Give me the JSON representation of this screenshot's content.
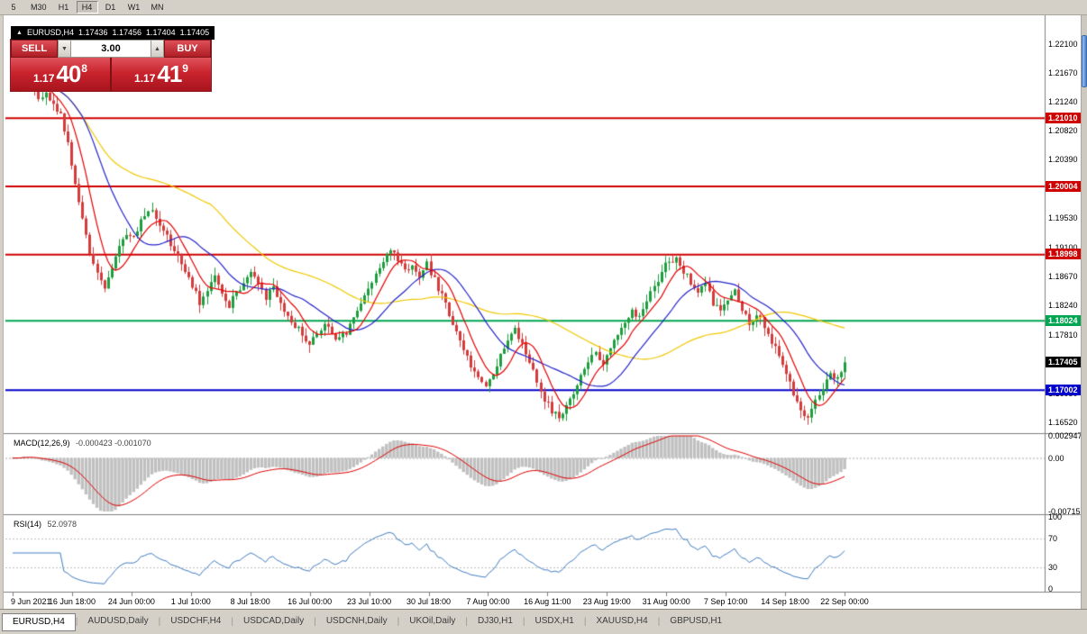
{
  "toolbar": {
    "timeframes": [
      "5",
      "M30",
      "H1",
      "H4",
      "D1",
      "W1",
      "MN"
    ],
    "active_index": 3
  },
  "chart_header": {
    "symbol": "EURUSD,H4",
    "open": "1.17436",
    "high": "1.17456",
    "low": "1.17404",
    "close": "1.17405"
  },
  "trade_panel": {
    "sell_label": "SELL",
    "buy_label": "BUY",
    "volume": "3.00",
    "bid": {
      "big_figure": "1.17",
      "pips": "40",
      "pipette": "8"
    },
    "ask": {
      "big_figure": "1.17",
      "pips": "41",
      "pipette": "9"
    }
  },
  "price_axis": {
    "ticks": [
      "1.22100",
      "1.21670",
      "1.21240",
      "1.20820",
      "1.20390",
      "1.19530",
      "1.19100",
      "1.18670",
      "1.18240",
      "1.17810",
      "1.16950",
      "1.16520"
    ]
  },
  "chart_data": {
    "type": "candlestick",
    "symbol": "EURUSD",
    "timeframe": "H4",
    "y_range": [
      1.164,
      1.2248
    ],
    "up_color": "#1e9e3e",
    "down_color": "#d43b3b",
    "x_labels": [
      "9 Jun 2021",
      "16 Jun 18:00",
      "24 Jun 00:00",
      "1 Jul 10:00",
      "8 Jul 18:00",
      "16 Jul 00:00",
      "23 Jul 10:00",
      "30 Jul 18:00",
      "7 Aug 00:00",
      "16 Aug 11:00",
      "23 Aug 19:00",
      "31 Aug 00:00",
      "7 Sep 10:00",
      "14 Sep 18:00",
      "22 Sep 00:00"
    ],
    "candles_per_point": 2,
    "close_path": [
      1.2152,
      1.217,
      1.2148,
      1.2132,
      1.214,
      1.2122,
      1.2106,
      1.2065,
      1.2005,
      1.1948,
      1.1902,
      1.1868,
      1.185,
      1.1882,
      1.1912,
      1.1932,
      1.1922,
      1.1946,
      1.1968,
      1.1956,
      1.1938,
      1.1916,
      1.1893,
      1.1872,
      1.1852,
      1.183,
      1.185,
      1.1868,
      1.1846,
      1.1826,
      1.184,
      1.1862,
      1.1878,
      1.1858,
      1.1838,
      1.185,
      1.1828,
      1.181,
      1.1796,
      1.178,
      1.177,
      1.1784,
      1.1796,
      1.1782,
      1.1772,
      1.1786,
      1.1804,
      1.1824,
      1.1846,
      1.1868,
      1.1888,
      1.1902,
      1.1892,
      1.1876,
      1.1886,
      1.187,
      1.1884,
      1.1862,
      1.1838,
      1.1812,
      1.1784,
      1.176,
      1.1738,
      1.172,
      1.1708,
      1.1722,
      1.1748,
      1.1774,
      1.1788,
      1.1768,
      1.174,
      1.1712,
      1.1686,
      1.1668,
      1.1656,
      1.1672,
      1.1698,
      1.1722,
      1.174,
      1.1752,
      1.1742,
      1.1762,
      1.1782,
      1.1802,
      1.1818,
      1.1808,
      1.1832,
      1.1854,
      1.1874,
      1.189,
      1.1896,
      1.1874,
      1.1858,
      1.1844,
      1.1854,
      1.1828,
      1.1812,
      1.183,
      1.1846,
      1.182,
      1.18,
      1.1812,
      1.1794,
      1.1772,
      1.1748,
      1.172,
      1.1694,
      1.1672,
      1.166,
      1.1684,
      1.1706,
      1.1728,
      1.1714,
      1.17405
    ],
    "levels": [
      {
        "price": 1.2101,
        "label": "1.21010",
        "color": "#d00000"
      },
      {
        "price": 1.20004,
        "label": "1.20004",
        "color": "#d00000"
      },
      {
        "price": 1.18998,
        "label": "1.18998",
        "color": "#d00000"
      },
      {
        "price": 1.18024,
        "label": "1.18024",
        "color": "#00a651"
      },
      {
        "price": 1.17002,
        "label": "1.17002",
        "color": "#0000cc"
      }
    ],
    "current_price": {
      "price": 1.17405,
      "label": "1.17405",
      "color": "#000000"
    },
    "overlays": [
      {
        "name": "ma-fast",
        "period": 8,
        "color": "#e60000"
      },
      {
        "name": "ma-mid",
        "period": 20,
        "color": "#2525cc"
      },
      {
        "name": "ma-slow",
        "period": 55,
        "color": "#f0c800"
      }
    ],
    "indicators": [
      {
        "name": "MACD",
        "label": "MACD(12,26,9)",
        "values_text": "-0.000423 -0.001070",
        "axis_labels": [
          "0.002947",
          "0.00",
          "-0.00715"
        ],
        "axis_values": [
          0.002947,
          0,
          -0.00715
        ],
        "range": [
          -0.00715,
          0.002947
        ],
        "fast": 12,
        "slow": 26,
        "signal": 9,
        "hist_color": "#c0c0c0",
        "signal_color": "#e00000"
      },
      {
        "name": "RSI",
        "label": "RSI(14)",
        "value_text": "52.0978",
        "axis_labels": [
          "100",
          "70",
          "30",
          "0"
        ],
        "axis_values": [
          100,
          70,
          30,
          0
        ],
        "levels": [
          70,
          30
        ],
        "range": [
          0,
          100
        ],
        "period": 14,
        "color": "#3f7cc1"
      }
    ]
  },
  "tabs": {
    "items": [
      "EURUSD,H4",
      "AUDUSD,Daily",
      "USDCHF,H4",
      "USDCAD,Daily",
      "USDCNH,Daily",
      "UKOil,Daily",
      "DJ30,H1",
      "USDX,H1",
      "XAUUSD,H4",
      "GBPUSD,H1"
    ],
    "active_index": 0
  }
}
